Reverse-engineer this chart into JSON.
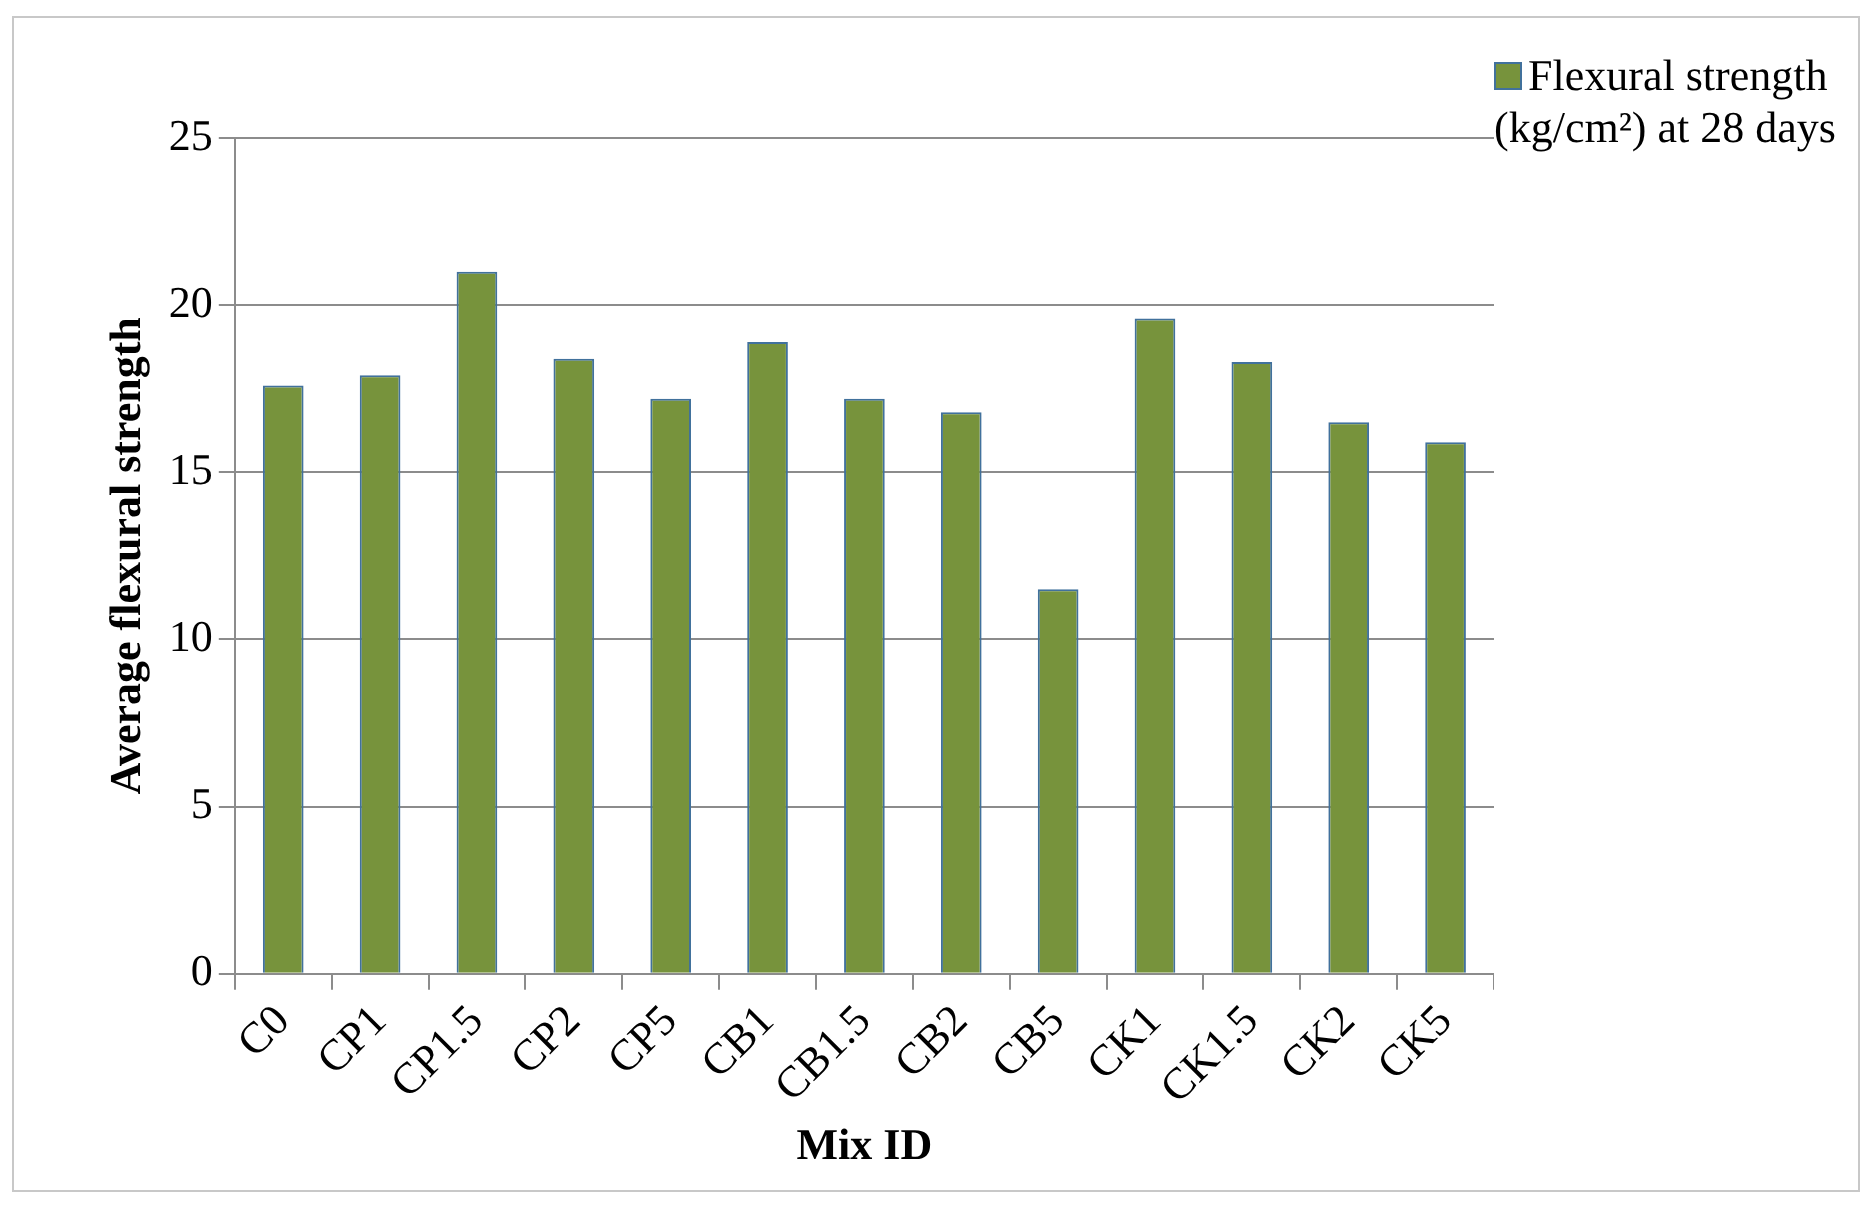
{
  "chart_data": {
    "type": "bar",
    "xlabel": "Mix ID",
    "ylabel": "Average flexural strength",
    "categories": [
      "C0",
      "CP1",
      "CP1.5",
      "CP2",
      "CP5",
      "CB1",
      "CB1.5",
      "CB2",
      "CB5",
      "CK1",
      "CK1.5",
      "CK2",
      "CK5"
    ],
    "series": [
      {
        "name": "Flexural strength (kg/cm²) at 28 days",
        "color": "#77933c",
        "values": [
          17.6,
          17.9,
          21.0,
          18.4,
          17.2,
          18.9,
          17.2,
          16.8,
          11.5,
          19.6,
          18.3,
          16.5,
          15.9
        ]
      }
    ],
    "ylim": [
      0,
      25
    ],
    "yticks": [
      0,
      5,
      10,
      15,
      20,
      25
    ],
    "grid": "y",
    "legend": "top right"
  }
}
